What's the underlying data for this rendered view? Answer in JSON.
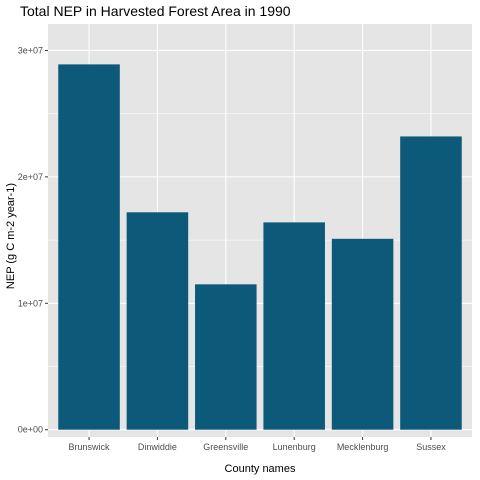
{
  "chart_data": {
    "type": "bar",
    "title": "Total NEP in Harvested Forest Area in 1990",
    "xlabel": "County names",
    "ylabel": "NEP (g C m-2 year-1)",
    "categories": [
      "Brunswick",
      "Dinwiddie",
      "Greensville",
      "Lunenburg",
      "Mecklenburg",
      "Sussex"
    ],
    "values": [
      28900000,
      17200000,
      11500000,
      16400000,
      15100000,
      23200000
    ],
    "ylim": [
      0,
      30000000
    ],
    "yticks": [
      0,
      10000000,
      20000000,
      30000000
    ],
    "ytick_labels": [
      "0e+00",
      "1e+07",
      "2e+07",
      "3e+07"
    ],
    "grid": true,
    "bar_color": "#0d5979",
    "panel_color": "#e5e5e5",
    "grid_color": "#ffffff"
  }
}
